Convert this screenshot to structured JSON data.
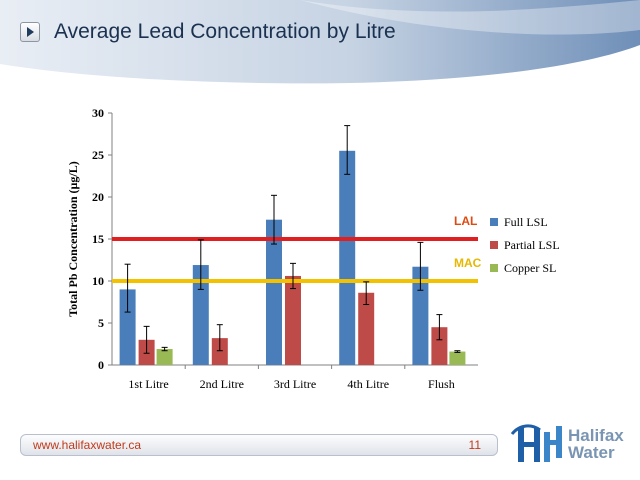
{
  "slide": {
    "title": "Average Lead Concentration by Litre",
    "footer_url": "www.halifaxwater.ca",
    "page_number": "11",
    "logo_text": [
      "Halifax",
      "Water"
    ]
  },
  "colors": {
    "full_lsl": "#4a7ebb",
    "partial_lsl": "#be4b48",
    "copper_sl": "#98b954",
    "lal_line": "#e02020",
    "lal_label": "#e04a10",
    "mac_line": "#f2c200",
    "mac_label": "#e6b800",
    "title": "#1b3150",
    "footer_text": "#c23b1c"
  },
  "chart_data": {
    "type": "bar",
    "title": "",
    "xlabel": "",
    "ylabel": "Total Pb Concentration (µg/L)",
    "ylim": [
      0,
      30
    ],
    "yticks": [
      0,
      5,
      10,
      15,
      20,
      25,
      30
    ],
    "grid": false,
    "legend_position": "right",
    "categories": [
      "1st Litre",
      "2nd Litre",
      "3rd Litre",
      "4th Litre",
      "Flush"
    ],
    "series": [
      {
        "name": "Full LSL",
        "color": "#4a7ebb",
        "values": [
          9.0,
          11.9,
          17.3,
          25.5,
          11.7
        ],
        "err_low": [
          6.3,
          9.0,
          14.4,
          22.7,
          8.9
        ],
        "err_high": [
          12.0,
          14.9,
          20.2,
          28.5,
          14.6
        ]
      },
      {
        "name": "Partial LSL",
        "color": "#be4b48",
        "values": [
          3.0,
          3.2,
          10.6,
          8.6,
          4.5
        ],
        "err_low": [
          1.4,
          1.7,
          9.1,
          7.2,
          3.0
        ],
        "err_high": [
          4.6,
          4.8,
          12.1,
          9.9,
          6.0
        ]
      },
      {
        "name": "Copper SL",
        "color": "#98b954",
        "values": [
          1.9,
          null,
          null,
          null,
          1.6
        ],
        "err_low": [
          1.7,
          null,
          null,
          null,
          1.5
        ],
        "err_high": [
          2.1,
          null,
          null,
          null,
          1.7
        ]
      }
    ],
    "reference_lines": [
      {
        "label": "LAL",
        "value": 15,
        "color": "#e02020"
      },
      {
        "label": "MAC",
        "value": 10,
        "color": "#f2c200"
      }
    ]
  }
}
